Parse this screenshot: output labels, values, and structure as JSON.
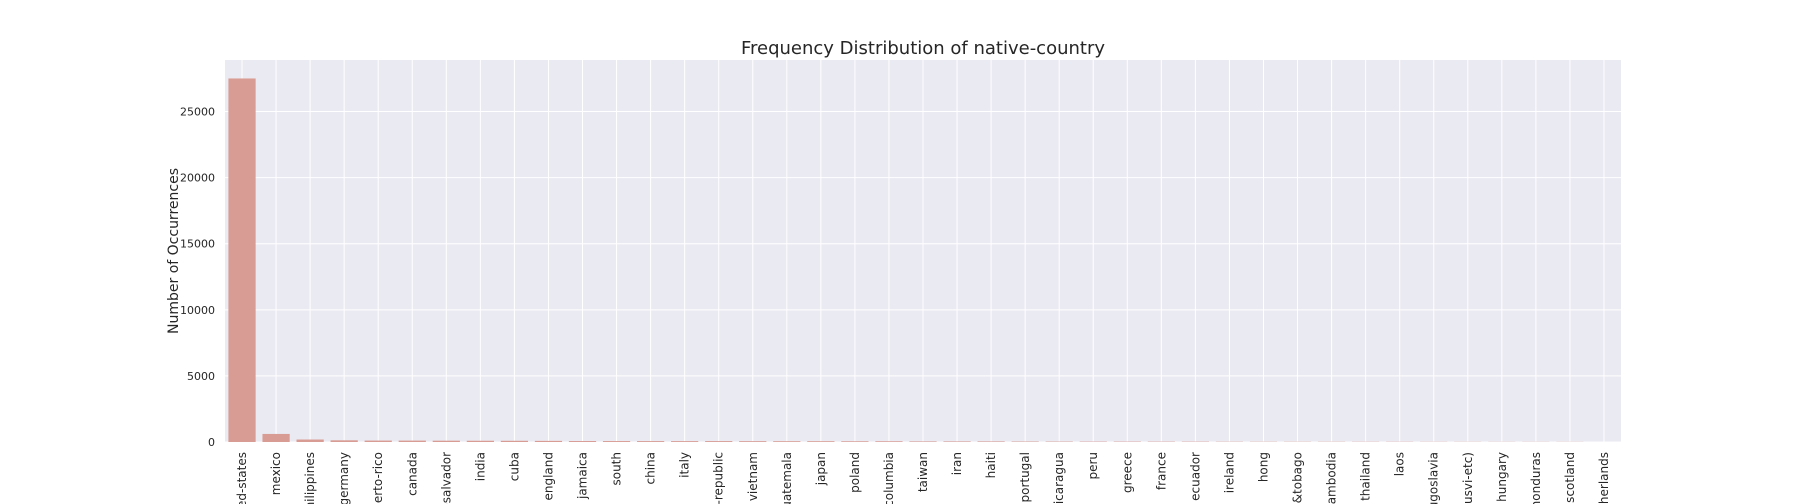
{
  "chart_data": {
    "type": "bar",
    "title": "Frequency Distribution of native-country",
    "xlabel": "",
    "ylabel": "Number of Occurrences",
    "ylim": [
      0,
      28900
    ],
    "yticks": [
      0,
      5000,
      10000,
      15000,
      20000,
      25000
    ],
    "grid": true,
    "bar_color": "#d99c94",
    "background_color": "#eaeaf2",
    "grid_color": "#ffffff",
    "categories": [
      "united-states",
      "mexico",
      "philippines",
      "germany",
      "puerto-rico",
      "canada",
      "el-salvador",
      "india",
      "cuba",
      "england",
      "jamaica",
      "south",
      "china",
      "italy",
      "dominican-republic",
      "vietnam",
      "guatemala",
      "japan",
      "poland",
      "columbia",
      "taiwan",
      "iran",
      "haiti",
      "portugal",
      "nicaragua",
      "peru",
      "greece",
      "france",
      "ecuador",
      "ireland",
      "hong",
      "trinadad&tobago",
      "cambodia",
      "thailand",
      "laos",
      "yugoslavia",
      "outlying-us(guam-usvi-etc)",
      "hungary",
      "honduras",
      "scotland",
      "holand-netherlands"
    ],
    "category_display": [
      "ted-states",
      "mexico",
      "hilippines",
      "germany",
      "uerto-rico",
      "canada",
      "l-salvador",
      "india",
      "cuba",
      "england",
      "jamaica",
      "south",
      "china",
      "italy",
      "n-republic",
      "vietnam",
      "uatemala",
      "japan",
      "poland",
      "columbia",
      "taiwan",
      "iran",
      "haiti",
      "portugal",
      "nicaragua",
      "peru",
      "greece",
      "france",
      "ecuador",
      "ireland",
      "hong",
      "d&tobago",
      "cambodia",
      "thailand",
      "laos",
      "ugoslavia",
      "-usvi-etc)",
      "hungary",
      "honduras",
      "scotland",
      "etherlands"
    ],
    "values": [
      27504,
      610,
      188,
      128,
      109,
      107,
      100,
      95,
      92,
      86,
      73,
      71,
      68,
      66,
      67,
      62,
      59,
      59,
      54,
      55,
      42,
      42,
      42,
      34,
      31,
      29,
      29,
      27,
      26,
      20,
      19,
      18,
      18,
      17,
      17,
      14,
      13,
      12,
      12,
      11,
      1
    ]
  }
}
